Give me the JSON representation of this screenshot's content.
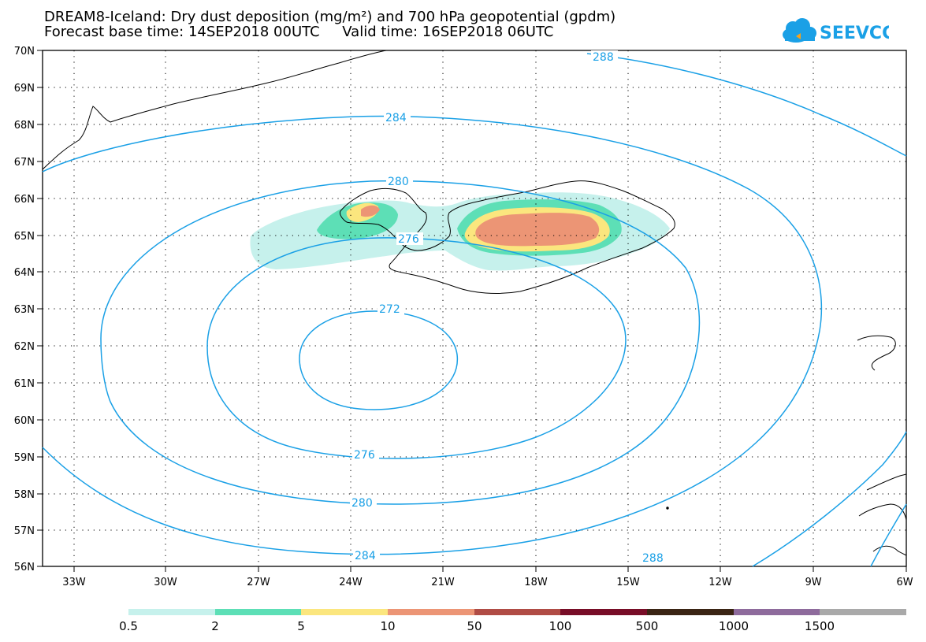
{
  "title": {
    "line1": "DREAM8-Iceland: Dry dust deposition (mg/m²) and 700 hPa geopotential (gpdm)",
    "line2": "Forecast base time: 14SEP2018 00UTC     Valid time: 16SEP2018 06UTC"
  },
  "logo": {
    "text": "SEEVCCC"
  },
  "axes": {
    "lat_labels": [
      "70N",
      "69N",
      "68N",
      "67N",
      "66N",
      "65N",
      "64N",
      "63N",
      "62N",
      "61N",
      "60N",
      "59N",
      "58N",
      "57N",
      "56N"
    ],
    "lon_labels": [
      "33W",
      "30W",
      "27W",
      "24W",
      "21W",
      "18W",
      "15W",
      "12W",
      "9W",
      "6W"
    ]
  },
  "contours": {
    "color": "#1aa0e6",
    "labels": [
      "288",
      "284",
      "280",
      "276",
      "272",
      "276",
      "280",
      "284",
      "288"
    ]
  },
  "legend": {
    "colors": [
      "#c6f1ec",
      "#5ddfb6",
      "#fbe67e",
      "#ec9575",
      "#b04c45",
      "#780d27",
      "#3a2414",
      "#8e6b9c",
      "#a9a9a9"
    ],
    "labels": [
      "0.5",
      "2",
      "5",
      "10",
      "50",
      "100",
      "500",
      "1000",
      "1500"
    ]
  }
}
